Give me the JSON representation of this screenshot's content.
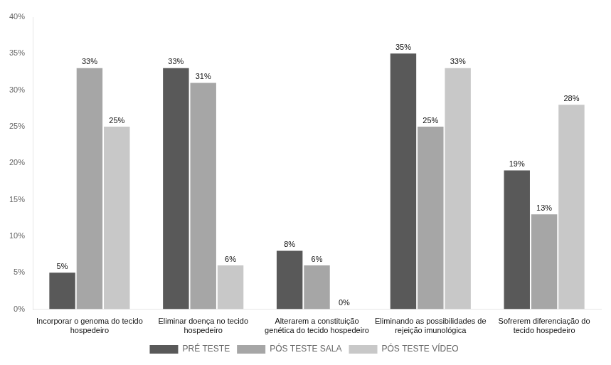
{
  "chart_data": {
    "type": "bar",
    "categories": [
      "Incorporar o genoma do tecido\nhospedeiro",
      "Eliminar doença no tecido\nhospedeiro",
      "Alterarem a constituição\ngenética do tecido hospedeiro",
      "Eliminando as possibilidades de\nrejeição imunológica",
      "Sofrerem diferenciação do\ntecido hospedeiro"
    ],
    "series": [
      {
        "name": "PRÉ TESTE",
        "color": "#595959",
        "values": [
          5,
          33,
          8,
          35,
          19
        ],
        "value_labels": [
          "5%",
          "33%",
          "8%",
          "35%",
          "19%"
        ]
      },
      {
        "name": "PÓS TESTE SALA",
        "color": "#a6a6a6",
        "values": [
          33,
          31,
          6,
          25,
          13
        ],
        "value_labels": [
          "33%",
          "31%",
          "6%",
          "25%",
          "13%"
        ]
      },
      {
        "name": "PÓS TESTE VÍDEO",
        "color": "#c8c8c8",
        "values": [
          25,
          6,
          0,
          33,
          28
        ],
        "value_labels": [
          "25%",
          "6%",
          "0%",
          "33%",
          "28%"
        ]
      }
    ],
    "ylim": [
      0,
      40
    ],
    "yticks": [
      {
        "value": 0,
        "label": "0%"
      },
      {
        "value": 5,
        "label": "5%"
      },
      {
        "value": 10,
        "label": "10%"
      },
      {
        "value": 15,
        "label": "15%"
      },
      {
        "value": 20,
        "label": "20%"
      },
      {
        "value": 25,
        "label": "25%"
      },
      {
        "value": 30,
        "label": "30%"
      },
      {
        "value": 35,
        "label": "35%"
      },
      {
        "value": 40,
        "label": "40%"
      }
    ],
    "grid": false,
    "legend": "bottom",
    "data_labels": true
  }
}
